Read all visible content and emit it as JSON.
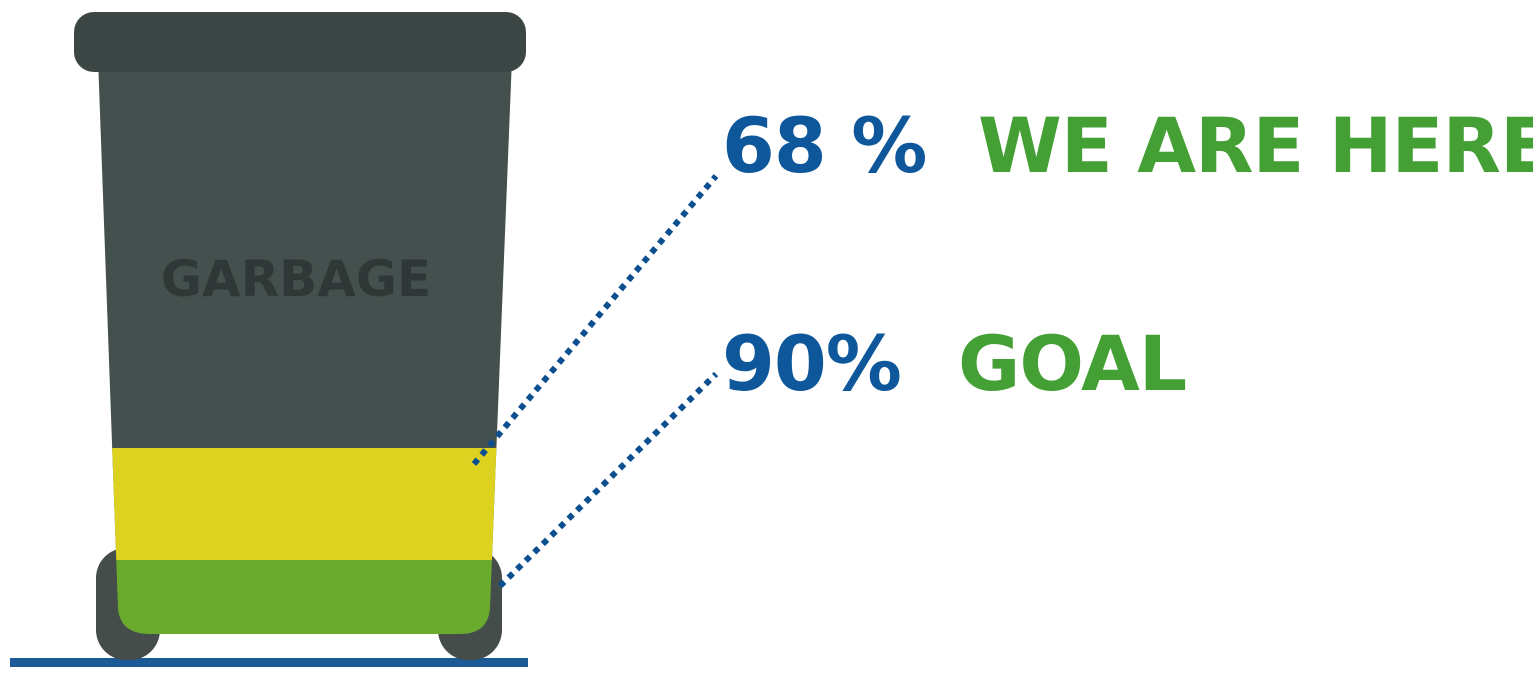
{
  "bin": {
    "label": "GARBAGE",
    "current_fill_percent": 68,
    "goal_fill_percent": 90
  },
  "markers": {
    "current": {
      "percent_text": "68 %",
      "caption": "WE ARE HERE"
    },
    "goal": {
      "percent_text": "90%",
      "caption": "GOAL"
    }
  },
  "colors": {
    "bin_body": "#43504d",
    "bin_lid": "#3c4745",
    "bin_wheels": "#454d4b",
    "fill_current": "#ddd21f",
    "fill_goal": "#6aab2e",
    "label_text": "#2f3836",
    "percent_text": "#0e579b",
    "caption_text": "#44a035",
    "leader_line": "#0c4f91",
    "ground_line": "#1b5a96"
  },
  "icons": {
    "bin": "wheelie-bin-icon"
  }
}
